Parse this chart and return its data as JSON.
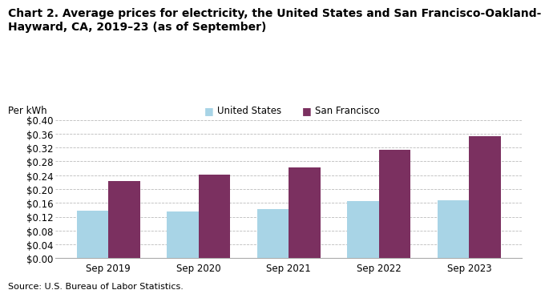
{
  "title_line1": "Chart 2. Average prices for electricity, the United States and San Francisco-Oakland-",
  "title_line2": "Hayward, CA, 2019–23 (as of September)",
  "ylabel": "Per kWh",
  "source": "Source: U.S. Bureau of Labor Statistics.",
  "categories": [
    "Sep 2019",
    "Sep 2020",
    "Sep 2021",
    "Sep 2022",
    "Sep 2023"
  ],
  "us_values": [
    0.137,
    0.136,
    0.141,
    0.165,
    0.168
  ],
  "sf_values": [
    0.222,
    0.242,
    0.262,
    0.313,
    0.352
  ],
  "us_color": "#a8d4e6",
  "sf_color": "#7b3060",
  "us_label": "United States",
  "sf_label": "San Francisco",
  "ylim": [
    0,
    0.4
  ],
  "yticks": [
    0.0,
    0.04,
    0.08,
    0.12,
    0.16,
    0.2,
    0.24,
    0.28,
    0.32,
    0.36,
    0.4
  ],
  "bar_width": 0.35,
  "background_color": "#ffffff",
  "grid_color": "#bbbbbb",
  "title_fontsize": 10,
  "axis_fontsize": 8.5,
  "legend_fontsize": 8.5,
  "source_fontsize": 8,
  "ylabel_fontsize": 8.5
}
